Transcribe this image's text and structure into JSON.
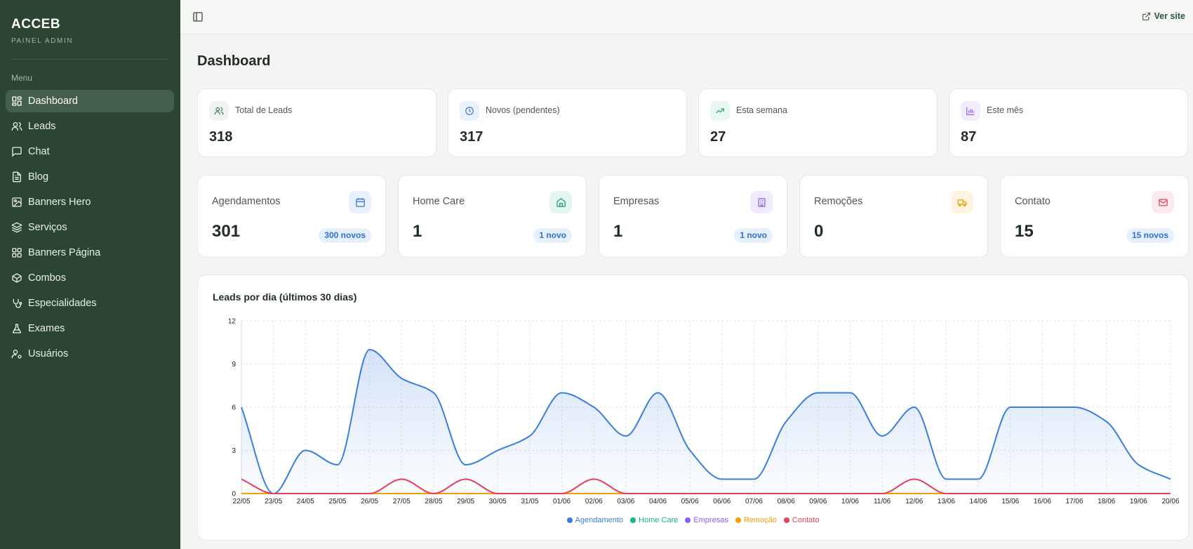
{
  "sidebar": {
    "brand": "ACCEB",
    "subtitle": "PAINEL ADMIN",
    "menu_label": "Menu",
    "items": [
      {
        "label": "Dashboard"
      },
      {
        "label": "Leads"
      },
      {
        "label": "Chat"
      },
      {
        "label": "Blog"
      },
      {
        "label": "Banners Hero"
      },
      {
        "label": "Serviços"
      },
      {
        "label": "Banners Página"
      },
      {
        "label": "Combos"
      },
      {
        "label": "Especialidades"
      },
      {
        "label": "Exames"
      },
      {
        "label": "Usuários"
      }
    ]
  },
  "topbar": {
    "ver_site": "Ver site"
  },
  "page_title": "Dashboard",
  "stats_top": [
    {
      "label": "Total de Leads",
      "value": "318",
      "icon": "users-icon",
      "color": "#3f7a4f",
      "bg": "#eef4ef"
    },
    {
      "label": "Novos (pendentes)",
      "value": "317",
      "icon": "clock-icon",
      "color": "#3b73d1",
      "bg": "#eaf1fc"
    },
    {
      "label": "Esta semana",
      "value": "27",
      "icon": "trending-up-icon",
      "color": "#22a36a",
      "bg": "#e8f7ef"
    },
    {
      "label": "Este mês",
      "value": "87",
      "icon": "bar-chart-icon",
      "color": "#8b5cf6",
      "bg": "#f2edfd"
    }
  ],
  "stats_services": [
    {
      "label": "Agendamentos",
      "value": "301",
      "badge": "300 novos",
      "icon": "calendar-icon",
      "color": "#3b73d1",
      "bg": "#e8f0fc"
    },
    {
      "label": "Home Care",
      "value": "1",
      "badge": "1 novo",
      "icon": "home-icon",
      "color": "#18a06a",
      "bg": "#e5f6ee"
    },
    {
      "label": "Empresas",
      "value": "1",
      "badge": "1 novo",
      "icon": "building-icon",
      "color": "#8b5cf6",
      "bg": "#efeafd"
    },
    {
      "label": "Remoções",
      "value": "0",
      "badge": "",
      "icon": "truck-icon",
      "color": "#e6a100",
      "bg": "#fdf5df"
    },
    {
      "label": "Contato",
      "value": "15",
      "badge": "15 novos",
      "icon": "mail-icon",
      "color": "#e0405e",
      "bg": "#fce9ed"
    }
  ],
  "chart": {
    "title": "Leads por dia (últimos 30 dias)"
  },
  "chart_data": {
    "type": "area",
    "title": "Leads por dia (últimos 30 dias)",
    "x": [
      "22/05",
      "23/05",
      "24/05",
      "25/05",
      "26/05",
      "27/05",
      "28/05",
      "29/05",
      "30/05",
      "31/05",
      "01/06",
      "02/06",
      "03/06",
      "04/06",
      "05/06",
      "06/06",
      "07/06",
      "08/06",
      "09/06",
      "10/06",
      "11/06",
      "12/06",
      "13/06",
      "14/06",
      "15/06",
      "16/06",
      "17/06",
      "18/06",
      "19/06",
      "20/06"
    ],
    "ylim": [
      0,
      12
    ],
    "yticks": [
      0,
      3,
      6,
      9,
      12
    ],
    "grid": true,
    "legend_position": "bottom-center",
    "series": [
      {
        "name": "Agendamento",
        "color": "#3b7ddd",
        "filled": true,
        "values": [
          6,
          0,
          3,
          2,
          10,
          8,
          7,
          2,
          3,
          4,
          7,
          6,
          4,
          7,
          3,
          1,
          1,
          5,
          7,
          7,
          4,
          6,
          1,
          1,
          6,
          6,
          6,
          5,
          2,
          1
        ]
      },
      {
        "name": "Home Care",
        "color": "#10b981",
        "filled": false,
        "values": [
          0,
          0,
          0,
          0,
          0,
          0,
          0,
          0,
          0,
          0,
          0,
          0,
          0,
          0,
          0,
          0,
          0,
          0,
          0,
          0,
          0,
          0,
          0,
          0,
          0,
          0,
          0,
          0,
          0,
          0
        ]
      },
      {
        "name": "Empresas",
        "color": "#8b5cf6",
        "filled": false,
        "values": [
          0,
          0,
          0,
          0,
          0,
          0,
          0,
          0,
          0,
          0,
          0,
          0,
          0,
          0,
          0,
          0,
          0,
          0,
          0,
          0,
          0,
          0,
          0,
          0,
          0,
          0,
          0,
          0,
          0,
          0
        ]
      },
      {
        "name": "Remoção",
        "color": "#f59e0b",
        "filled": false,
        "values": [
          0,
          0,
          0,
          0,
          0,
          0,
          0,
          0,
          0,
          0,
          0,
          0,
          0,
          0,
          0,
          0,
          0,
          0,
          0,
          0,
          0,
          0,
          0,
          0,
          0,
          0,
          0,
          0,
          0,
          0
        ]
      },
      {
        "name": "Contato",
        "color": "#e5405e",
        "filled": false,
        "values": [
          1,
          0,
          0,
          0,
          0,
          1,
          0,
          1,
          0,
          0,
          0,
          1,
          0,
          0,
          0,
          0,
          0,
          0,
          0,
          0,
          0,
          1,
          0,
          0,
          0,
          0,
          0,
          0,
          0,
          0
        ]
      }
    ]
  }
}
